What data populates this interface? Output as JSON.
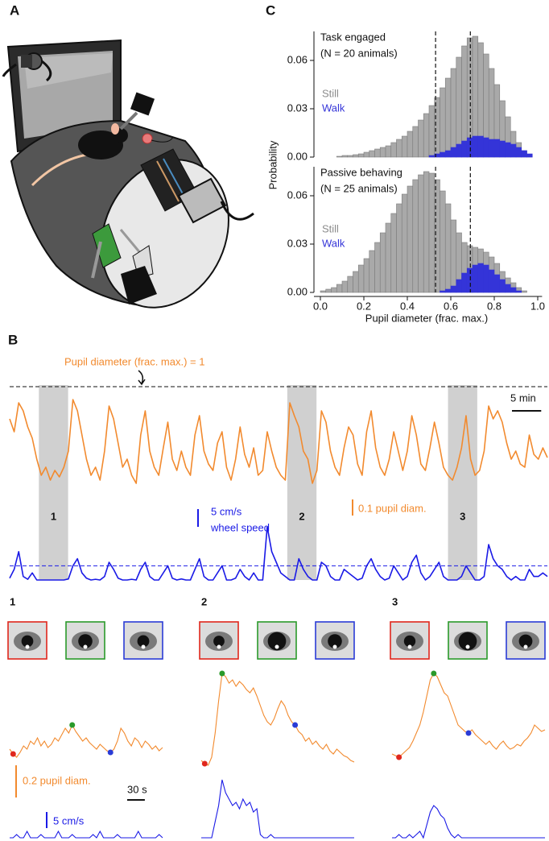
{
  "panel_labels": {
    "a": "A",
    "b": "B",
    "c": "C"
  },
  "histograms": {
    "type": "histogram",
    "y_label": "Probability",
    "x_label": "Pupil diameter (frac. max.)",
    "bins": [
      0,
      0.025,
      0.05,
      0.075,
      0.1,
      0.125,
      0.15,
      0.175,
      0.2,
      0.225,
      0.25,
      0.275,
      0.3,
      0.325,
      0.35,
      0.375,
      0.4,
      0.425,
      0.45,
      0.475,
      0.5,
      0.525,
      0.55,
      0.575,
      0.6,
      0.625,
      0.65,
      0.675,
      0.7,
      0.725,
      0.75,
      0.775,
      0.8,
      0.825,
      0.85,
      0.875,
      0.9,
      0.925,
      0.95,
      0.975,
      1
    ],
    "xlim": [
      -0.03,
      1.02
    ],
    "ylim": [
      0,
      0.078
    ],
    "xticks": [
      {
        "value": 0,
        "label": "0.0"
      },
      0.2,
      0.4,
      0.6,
      0.8,
      {
        "value": 1,
        "label": "1.0"
      }
    ],
    "yticks": [
      {
        "value": 0,
        "label": "0.00"
      },
      {
        "value": 0.03,
        "label": "0.03"
      },
      {
        "value": 0.06,
        "label": "0.06"
      }
    ],
    "vlines": [
      0.53,
      0.69
    ],
    "panels": [
      {
        "title": "Task engaged",
        "subtitle": "(N = 20 animals)",
        "series": [
          {
            "name": "Still",
            "color": "#a9a9a9",
            "values": [
              0,
              0,
              0,
              0.0005,
              0.001,
              0.001,
              0.0015,
              0.002,
              0.003,
              0.004,
              0.005,
              0.006,
              0.007,
              0.009,
              0.011,
              0.013,
              0.016,
              0.019,
              0.023,
              0.027,
              0.032,
              0.037,
              0.043,
              0.049,
              0.055,
              0.062,
              0.069,
              0.074,
              0.075,
              0.071,
              0.064,
              0.055,
              0.045,
              0.035,
              0.025,
              0.016,
              0.009,
              0.004,
              0.001,
              0
            ]
          },
          {
            "name": "Walk",
            "color": "#3434d8",
            "values": [
              0,
              0,
              0,
              0,
              0,
              0,
              0,
              0,
              0,
              0,
              0,
              0,
              0,
              0,
              0,
              0,
              0,
              0,
              0,
              0,
              0.001,
              0.002,
              0.003,
              0.004,
              0.006,
              0.008,
              0.01,
              0.012,
              0.013,
              0.013,
              0.012,
              0.011,
              0.011,
              0.01,
              0.009,
              0.008,
              0.006,
              0.004,
              0.002,
              0
            ]
          }
        ]
      },
      {
        "title": "Passive behaving",
        "subtitle": "(N = 25 animals)",
        "series": [
          {
            "name": "Still",
            "color": "#a9a9a9",
            "values": [
              0.001,
              0.002,
              0.003,
              0.005,
              0.007,
              0.01,
              0.013,
              0.017,
              0.021,
              0.026,
              0.031,
              0.037,
              0.043,
              0.049,
              0.055,
              0.061,
              0.066,
              0.07,
              0.073,
              0.075,
              0.074,
              0.07,
              0.063,
              0.055,
              0.045,
              0.037,
              0.031,
              0.029,
              0.028,
              0.027,
              0.025,
              0.022,
              0.018,
              0.013,
              0.009,
              0.006,
              0.003,
              0.001,
              0,
              0
            ]
          },
          {
            "name": "Walk",
            "color": "#3434d8",
            "values": [
              0,
              0,
              0,
              0,
              0,
              0,
              0,
              0,
              0,
              0,
              0,
              0,
              0,
              0,
              0,
              0,
              0,
              0,
              0,
              0,
              0,
              0,
              0.001,
              0.002,
              0.004,
              0.008,
              0.012,
              0.015,
              0.017,
              0.018,
              0.017,
              0.014,
              0.011,
              0.008,
              0.005,
              0.003,
              0.001,
              0,
              0,
              0
            ]
          }
        ]
      }
    ]
  },
  "overview": {
    "reference_label": "Pupil diameter (frac. max.) = 1",
    "reference_value": 1,
    "xlim": [
      0,
      92
    ],
    "windows": [
      {
        "label": "1",
        "range": [
          5,
          10
        ]
      },
      {
        "label": "2",
        "range": [
          47.5,
          52.5
        ]
      },
      {
        "label": "3",
        "range": [
          75,
          80
        ]
      }
    ],
    "time_scalebar": {
      "label": "5 min",
      "value": 5
    },
    "pupil_scalebar": {
      "label": "0.1 pupil diam.",
      "value": 0.1
    },
    "speed_scalebar": {
      "label": "5 cm/s",
      "sublabel": "wheel speed",
      "value": 5
    },
    "speed_threshold": 4,
    "pupil": {
      "color": "#f28a2e",
      "values": [
        0.8,
        0.72,
        0.9,
        0.85,
        0.75,
        0.68,
        0.55,
        0.45,
        0.5,
        0.42,
        0.48,
        0.44,
        0.5,
        0.6,
        0.92,
        0.85,
        0.7,
        0.55,
        0.45,
        0.5,
        0.42,
        0.6,
        0.88,
        0.8,
        0.65,
        0.5,
        0.55,
        0.45,
        0.4,
        0.7,
        0.85,
        0.6,
        0.5,
        0.45,
        0.62,
        0.78,
        0.55,
        0.48,
        0.6,
        0.5,
        0.45,
        0.7,
        0.82,
        0.6,
        0.52,
        0.48,
        0.65,
        0.72,
        0.5,
        0.42,
        0.55,
        0.75,
        0.58,
        0.5,
        0.62,
        0.45,
        0.48,
        0.72,
        0.6,
        0.5,
        0.45,
        0.42,
        0.9,
        0.82,
        0.75,
        0.6,
        0.55,
        0.4,
        0.48,
        0.85,
        0.78,
        0.6,
        0.5,
        0.45,
        0.62,
        0.75,
        0.7,
        0.52,
        0.45,
        0.72,
        0.85,
        0.62,
        0.5,
        0.45,
        0.55,
        0.72,
        0.6,
        0.48,
        0.6,
        0.82,
        0.7,
        0.52,
        0.48,
        0.62,
        0.78,
        0.65,
        0.5,
        0.45,
        0.42,
        0.5,
        0.62,
        0.82,
        0.55,
        0.45,
        0.48,
        0.6,
        0.88,
        0.8,
        0.85,
        0.78,
        0.65,
        0.55,
        0.6,
        0.52,
        0.5,
        0.7,
        0.58,
        0.55,
        0.62,
        0.56
      ]
    },
    "speed": {
      "color": "#1a1ae6",
      "values": [
        0.5,
        3,
        8,
        1,
        0.2,
        2,
        0,
        0,
        0,
        0,
        0,
        0,
        0,
        0.3,
        4,
        6,
        2,
        0.5,
        0,
        0.2,
        0,
        1,
        5,
        3,
        0.5,
        0,
        0,
        0.2,
        0,
        3,
        5,
        1,
        0,
        0,
        2,
        4,
        0.5,
        0,
        0.3,
        0,
        0,
        3,
        6,
        1,
        0,
        0,
        2,
        4,
        0,
        0,
        0.5,
        3,
        1,
        0,
        2,
        0,
        0,
        15,
        8,
        5,
        2,
        1,
        0,
        0,
        6,
        3,
        1,
        0,
        0,
        5,
        4,
        1,
        0,
        0,
        3,
        2,
        1,
        0,
        0.5,
        4,
        6,
        3,
        1,
        0,
        0.5,
        4,
        2,
        0,
        1,
        5,
        7,
        2,
        0,
        1,
        3,
        5,
        1,
        0,
        0,
        0,
        1,
        4,
        2,
        0,
        0,
        1,
        10,
        6,
        4,
        3,
        1,
        0,
        1,
        0,
        0,
        3,
        1,
        1,
        2,
        1
      ]
    }
  },
  "zooms": {
    "xlim": [
      0,
      260
    ],
    "marker_colors": [
      "#e0261c",
      "#2a9a2a",
      "#2a3bd6"
    ],
    "pupil_scalebar": {
      "label": "0.2 pupil diam.",
      "value": 0.2
    },
    "time_scalebar": {
      "label": "30 s",
      "value": 30
    },
    "speed_scalebar": {
      "label": "5 cm/s",
      "value": 5
    },
    "panels": [
      {
        "label": "1",
        "markers": [
          1,
          18,
          29
        ],
        "pupil": [
          0.45,
          0.42,
          0.4,
          0.43,
          0.47,
          0.45,
          0.5,
          0.48,
          0.52,
          0.47,
          0.5,
          0.46,
          0.48,
          0.52,
          0.5,
          0.54,
          0.58,
          0.55,
          0.6,
          0.56,
          0.53,
          0.5,
          0.52,
          0.49,
          0.47,
          0.45,
          0.48,
          0.46,
          0.44,
          0.43,
          0.45,
          0.5,
          0.58,
          0.55,
          0.5,
          0.47,
          0.52,
          0.5,
          0.46,
          0.5,
          0.48,
          0.45,
          0.47,
          0.44,
          0.46
        ],
        "speed": [
          0,
          0,
          1,
          0,
          0,
          2,
          0,
          0,
          0,
          1,
          0,
          0,
          0,
          0,
          2,
          0,
          0,
          0,
          1,
          0,
          0,
          0,
          0,
          0,
          1,
          0,
          2,
          0,
          0,
          0,
          0,
          1,
          0,
          0,
          0,
          0,
          0,
          2,
          0,
          0,
          0,
          0,
          0,
          1,
          0
        ]
      },
      {
        "label": "2",
        "markers": [
          1,
          6,
          27
        ],
        "pupil": [
          0.38,
          0.36,
          0.35,
          0.4,
          0.55,
          0.75,
          0.92,
          0.9,
          0.86,
          0.88,
          0.84,
          0.87,
          0.85,
          0.82,
          0.8,
          0.83,
          0.78,
          0.72,
          0.66,
          0.62,
          0.6,
          0.64,
          0.7,
          0.75,
          0.72,
          0.66,
          0.62,
          0.6,
          0.56,
          0.54,
          0.5,
          0.52,
          0.48,
          0.5,
          0.47,
          0.45,
          0.48,
          0.44,
          0.42,
          0.45,
          0.43,
          0.41,
          0.4,
          0.38,
          0.37
        ],
        "speed": [
          0,
          0,
          0,
          0,
          5,
          10,
          18,
          14,
          12,
          10,
          11,
          9,
          12,
          10,
          11,
          8,
          9,
          1,
          0,
          0,
          1,
          0,
          0,
          0,
          0,
          0,
          0,
          0,
          0,
          0,
          0,
          0,
          0,
          0,
          0,
          0,
          0,
          0,
          0,
          0,
          0,
          0,
          0,
          0,
          0
        ]
      },
      {
        "label": "3",
        "markers": [
          2,
          12,
          22
        ],
        "pupil": [
          0.42,
          0.41,
          0.4,
          0.42,
          0.44,
          0.46,
          0.5,
          0.55,
          0.6,
          0.68,
          0.78,
          0.88,
          0.92,
          0.9,
          0.85,
          0.8,
          0.78,
          0.72,
          0.66,
          0.6,
          0.58,
          0.56,
          0.55,
          0.57,
          0.54,
          0.52,
          0.5,
          0.48,
          0.5,
          0.47,
          0.45,
          0.48,
          0.5,
          0.47,
          0.45,
          0.46,
          0.48,
          0.47,
          0.5,
          0.52,
          0.55,
          0.6,
          0.58,
          0.56,
          0.57
        ],
        "speed": [
          0,
          0,
          1,
          0,
          0,
          1,
          0,
          1,
          2,
          0,
          4,
          8,
          10,
          9,
          7,
          6,
          3,
          1,
          0,
          1,
          0,
          0,
          0,
          0,
          0,
          0,
          0,
          0,
          0,
          0,
          0,
          0,
          0,
          0,
          0,
          0,
          0,
          0,
          0,
          0,
          0,
          0,
          0,
          0,
          0
        ]
      }
    ]
  }
}
